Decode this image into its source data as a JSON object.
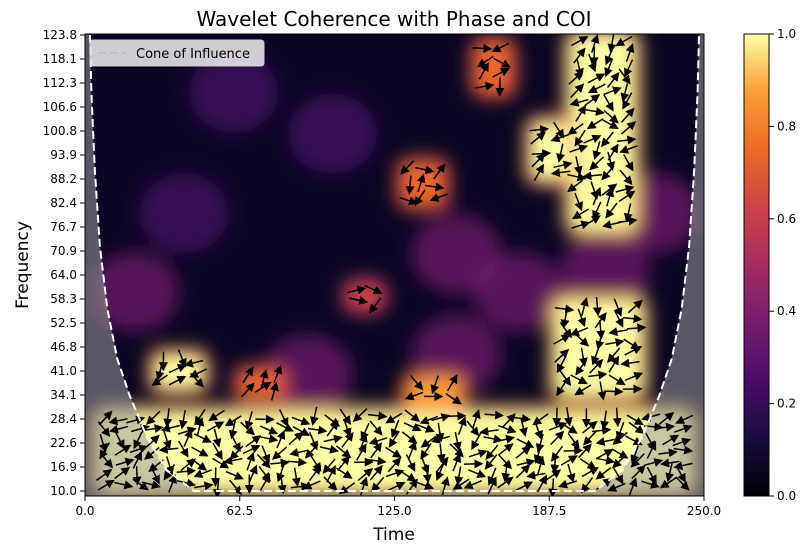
{
  "chart_data": {
    "type": "heatmap",
    "title": "Wavelet Coherence with Phase and COI",
    "xlabel": "Time",
    "ylabel": "Frequency",
    "xlim": [
      0,
      250
    ],
    "ylim": [
      10.0,
      123.8
    ],
    "x_ticks": [
      "0.0",
      "62.5",
      "125.0",
      "187.5",
      "250.0"
    ],
    "x_tick_values": [
      0,
      62.5,
      125,
      187.5,
      250
    ],
    "y_ticks": [
      "10.0",
      "16.9",
      "22.6",
      "28.4",
      "34.1",
      "41.0",
      "46.8",
      "52.5",
      "58.3",
      "64.0",
      "70.9",
      "76.7",
      "82.4",
      "88.2",
      "93.9",
      "100.8",
      "106.6",
      "112.3",
      "118.1",
      "123.8"
    ],
    "colorbar": {
      "range": [
        0.0,
        1.0
      ],
      "ticks": [
        "0.0",
        "0.2",
        "0.4",
        "0.6",
        "0.8",
        "1.0"
      ],
      "colormap": "inferno"
    },
    "legend": {
      "entries": [
        "Cone of Influence"
      ],
      "placement": "top-left"
    },
    "coherence_regions": [
      {
        "label": "low-frequency band",
        "x": [
          5,
          245
        ],
        "y": [
          10,
          30
        ],
        "coherence": 1.0
      },
      {
        "label": "high-frequency ridge",
        "x": [
          196,
          222
        ],
        "y": [
          76,
          123.8
        ],
        "coherence": 1.0
      },
      {
        "label": "high-frequency ridge secondary",
        "x": [
          180,
          196
        ],
        "y": [
          88,
          103
        ],
        "coherence": 0.9
      },
      {
        "label": "mid-frequency rise",
        "x": [
          190,
          225
        ],
        "y": [
          34,
          58
        ],
        "coherence": 0.95
      },
      {
        "label": "blob near t=35",
        "x": [
          28,
          48
        ],
        "y": [
          36,
          45
        ],
        "coherence": 0.9
      },
      {
        "label": "blob near t=70",
        "x": [
          62,
          80
        ],
        "y": [
          34,
          41
        ],
        "coherence": 0.7
      },
      {
        "label": "blob near t=140",
        "x": [
          130,
          152
        ],
        "y": [
          32,
          39
        ],
        "coherence": 0.8
      },
      {
        "label": "blob near t=135 high",
        "x": [
          128,
          145
        ],
        "y": [
          82,
          92
        ],
        "coherence": 0.75
      },
      {
        "label": "blob near t=165 top",
        "x": [
          158,
          172
        ],
        "y": [
          110,
          122
        ],
        "coherence": 0.7
      },
      {
        "label": "blob near t=112",
        "x": [
          106,
          120
        ],
        "y": [
          56,
          62
        ],
        "coherence": 0.6
      }
    ],
    "coi_points": [
      [
        2,
        123.8
      ],
      [
        2.6,
        110
      ],
      [
        4,
        90
      ],
      [
        6,
        72
      ],
      [
        9,
        56
      ],
      [
        13,
        44
      ],
      [
        18,
        34
      ],
      [
        25,
        24
      ],
      [
        33,
        16
      ],
      [
        44,
        10
      ],
      [
        206,
        10
      ],
      [
        217,
        16
      ],
      [
        225,
        24
      ],
      [
        232,
        34
      ],
      [
        237,
        44
      ],
      [
        241,
        56
      ],
      [
        244,
        72
      ],
      [
        246,
        90
      ],
      [
        247.4,
        110
      ],
      [
        248,
        123.8
      ]
    ]
  }
}
